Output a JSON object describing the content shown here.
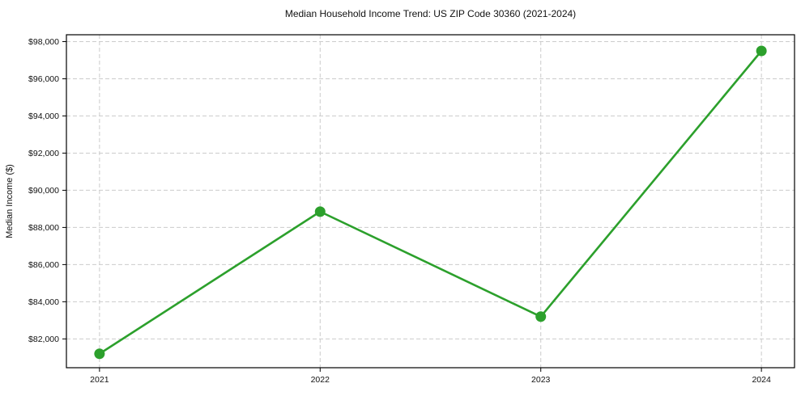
{
  "chart_data": {
    "type": "line",
    "title": "Median Household Income Trend: US ZIP Code 30360 (2021-2024)",
    "xlabel": "",
    "ylabel": "Median Income ($)",
    "categories": [
      "2021",
      "2022",
      "2023",
      "2024"
    ],
    "x": [
      2021,
      2022,
      2023,
      2024
    ],
    "series": [
      {
        "name": "Median Household Income",
        "values": [
          81200,
          88850,
          83200,
          97500
        ]
      }
    ],
    "x_tick_labels": [
      "2021",
      "2022",
      "2023",
      "2024"
    ],
    "y_ticks": [
      82000,
      84000,
      86000,
      88000,
      90000,
      92000,
      94000,
      96000,
      98000
    ],
    "y_tick_labels": [
      "$82,000",
      "$84,000",
      "$86,000",
      "$88,000",
      "$90,000",
      "$92,000",
      "$94,000",
      "$96,000",
      "$98,000"
    ],
    "xlim": [
      2020.85,
      2024.15
    ],
    "ylim": [
      80450,
      98370
    ],
    "grid": "on",
    "grid_style": "dashed",
    "legend": "none",
    "colors": {
      "line": "#2ca02c",
      "marker": "#2ca02c",
      "grid": "#cccccc",
      "axis": "#000000",
      "text": "#111111",
      "background": "#ffffff"
    },
    "marker": "circle"
  }
}
